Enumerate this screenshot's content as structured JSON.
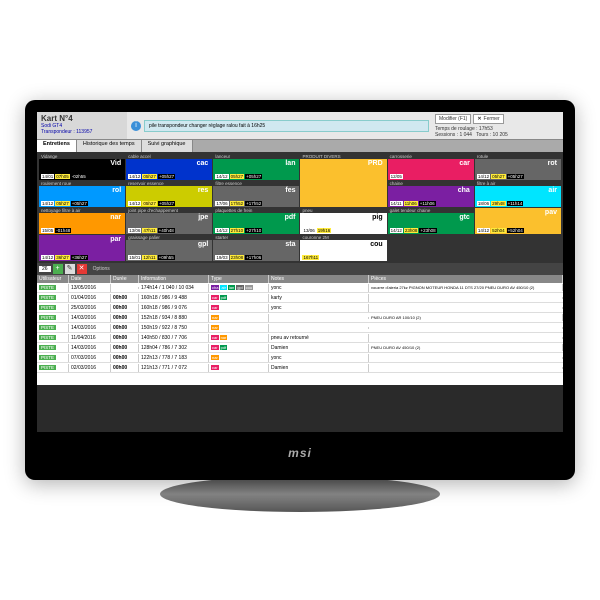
{
  "monitor_brand": "msi",
  "header": {
    "title": "Kart N°4",
    "subtitle1": "Sodi GT4",
    "subtitle2": "Transpondeur : 113957",
    "info_msg": "pile transpondeur changer\nréglage ralou fait à 16h25",
    "modifier_btn": "Modifier (F1)",
    "fermer_btn": "Fermer",
    "stats": {
      "l1": "Temps de roulage : 17h53",
      "l2a": "Sessions : 1 044",
      "l2b": "Tours : 10 205"
    }
  },
  "tabs": [
    "Entretiens",
    "Historique des temps",
    "Suivi graphique"
  ],
  "toolbar_count": "26",
  "toolbar_options": "Options",
  "grid_cells": [
    {
      "lbl": "Vidange",
      "code": "Vid",
      "bg": "#000000",
      "v1": "14/01",
      "v2": "07h05",
      "v3": "-02h55"
    },
    {
      "lbl": "cable accel",
      "code": "cac",
      "bg": "#0033cc",
      "v1": "14/12",
      "v2": "05h27",
      "v3": "+05h27"
    },
    {
      "lbl": "lanceur",
      "code": "lan",
      "bg": "#00994d",
      "v1": "14/12",
      "v2": "05h27",
      "v3": "+05h27"
    },
    {
      "lbl": "PRODUIT DIVERS",
      "code": "PRD",
      "bg": "#fbc02d",
      "v1": "",
      "v2": "",
      "v3": "",
      "tall": true,
      "rows": 2
    },
    {
      "lbl": "carrosserie",
      "code": "car",
      "bg": "#e91e63",
      "v1": "12/05",
      "v2": "",
      "v3": ""
    },
    {
      "lbl": "rotule",
      "code": "rot",
      "bg": "#666666",
      "v1": "14/12",
      "v2": "05h27",
      "v3": "+05h27"
    },
    {
      "lbl": "roulement roue",
      "code": "rol",
      "bg": "#0099ff",
      "v1": "14/12",
      "v2": "05h27",
      "v3": "+05h27"
    },
    {
      "lbl": "reservoir essence",
      "code": "res",
      "bg": "#cccc00",
      "v1": "14/12",
      "v2": "05h27",
      "v3": "+05h27"
    },
    {
      "lbl": "filtre essence",
      "code": "fes",
      "bg": "#666666",
      "v1": "17/06",
      "v2": "17h52",
      "v3": "+17h52"
    },
    {
      "lbl": "chaine",
      "code": "cha",
      "bg": "#7b1fa2",
      "v1": "14/11",
      "v2": "11h06",
      "v3": "+11h06"
    },
    {
      "lbl": "filtre à air",
      "code": "air",
      "bg": "#00e5ff",
      "v1": "18/06",
      "v2": "29h48",
      "v3": "+11h14"
    },
    {
      "lbl": "nettoyage filtre à air",
      "code": "nar",
      "bg": "#ff9800",
      "v1": "15/05",
      "v2": "",
      "v3": "-01h48"
    },
    {
      "lbl": "joint pipe d'echappement",
      "code": "jpe",
      "bg": "#666666",
      "v1": "13/06",
      "v2": "47h11",
      "v3": "+40h48"
    },
    {
      "lbl": "plaquettes de frein",
      "code": "pdf",
      "bg": "#00994d",
      "v1": "14/12",
      "v2": "27h10",
      "v3": "+27h10"
    },
    {
      "lbl": "pneu",
      "code": "pig",
      "bg": "#ffffff",
      "fg": "#000",
      "v1": "13/06",
      "v2": "19h16",
      "v3": ""
    },
    {
      "lbl": "galet tendeur chaine",
      "code": "gtc",
      "bg": "#00994d",
      "v1": "14/12",
      "v2": "23h08",
      "v3": "+23h08"
    },
    {
      "lbl": "",
      "code": "pav",
      "bg": "#fbc02d",
      "v1": "14/12",
      "v2": "52h04",
      "v3": "+52h04"
    },
    {
      "lbl": "",
      "code": "par",
      "bg": "#7b1fa2",
      "v1": "14/12",
      "v2": "36h27",
      "v3": "+36h27"
    },
    {
      "lbl": "graissage palier",
      "code": "gpl",
      "bg": "#666666",
      "v1": "15/01",
      "v2": "12h11",
      "v3": "+09h55"
    },
    {
      "lbl": "starter",
      "code": "sta",
      "bg": "#666666",
      "v1": "19/03",
      "v2": "23h08",
      "v3": "+17h06"
    },
    {
      "lbl": "couronne 2M",
      "code": "cou",
      "bg": "#ffffff",
      "fg": "#000",
      "v1": "",
      "v2": "167h11",
      "v3": ""
    }
  ],
  "chip_colors": {
    "cha": "#7b1fa2",
    "air": "#00e5ff",
    "lan": "#00994d",
    "gpl": "#666",
    "cou": "#999",
    "car": "#e91e63",
    "pdf": "#00994d",
    "nar": "#ff9800"
  },
  "table": {
    "columns": [
      "Utilisateur",
      "Date",
      "Durée",
      "Information",
      "Type",
      "Notes",
      "Pièces"
    ],
    "rows": [
      {
        "user": "PISTE",
        "date": "13/05/2016",
        "dur": "",
        "info": "174h14 / 1 040 / 10 034",
        "types": [
          "cha",
          "air",
          "lan",
          "gpl",
          "cou"
        ],
        "notes": "yonc",
        "piece": "vouzrre d'aleria 27kz\nPIGNON MOTEUR HONDA 11 DTS 27/20\nPNEU DURO AV 450/10 (2)"
      },
      {
        "user": "PISTE",
        "date": "01/04/2016",
        "dur": "00h00",
        "info": "160h18 / 986 / 9 488",
        "types": [
          "car",
          "pdf"
        ],
        "notes": "karty",
        "piece": ""
      },
      {
        "user": "PISTE",
        "date": "25/03/2016",
        "dur": "00h00",
        "info": "160h18 / 986 / 9 076",
        "types": [
          "car"
        ],
        "notes": "yonc",
        "piece": ""
      },
      {
        "user": "PISTE",
        "date": "14/03/2016",
        "dur": "00h00",
        "info": "152h18 / 934 / 8 880",
        "types": [
          "nar"
        ],
        "notes": "",
        "piece": "PNEU DURO AR 100/10 (2)"
      },
      {
        "user": "PISTE",
        "date": "14/03/2016",
        "dur": "00h00",
        "info": "150h19 / 922 / 8 750",
        "types": [
          "nar"
        ],
        "notes": "",
        "piece": ""
      },
      {
        "user": "PISTE",
        "date": "11/04/2016",
        "dur": "00h00",
        "info": "140h50 / 830 / 7 706",
        "types": [
          "car",
          "nar"
        ],
        "notes": "pneu av retourné",
        "piece": ""
      },
      {
        "user": "PISTE",
        "date": "14/03/2016",
        "dur": "00h00",
        "info": "128h04 / 786 / 7 302",
        "types": [
          "car",
          "pdf"
        ],
        "notes": "Damien",
        "piece": "PNEU DURO AV 450/10 (2)"
      },
      {
        "user": "PISTE",
        "date": "07/03/2016",
        "dur": "00h00",
        "info": "122h13 / 778 / 7 183",
        "types": [
          "nar"
        ],
        "notes": "yonc",
        "piece": ""
      },
      {
        "user": "PISTE",
        "date": "02/03/2016",
        "dur": "00h00",
        "info": "121h13 / 771 / 7 072",
        "types": [
          "car"
        ],
        "notes": "Damien",
        "piece": ""
      }
    ]
  }
}
